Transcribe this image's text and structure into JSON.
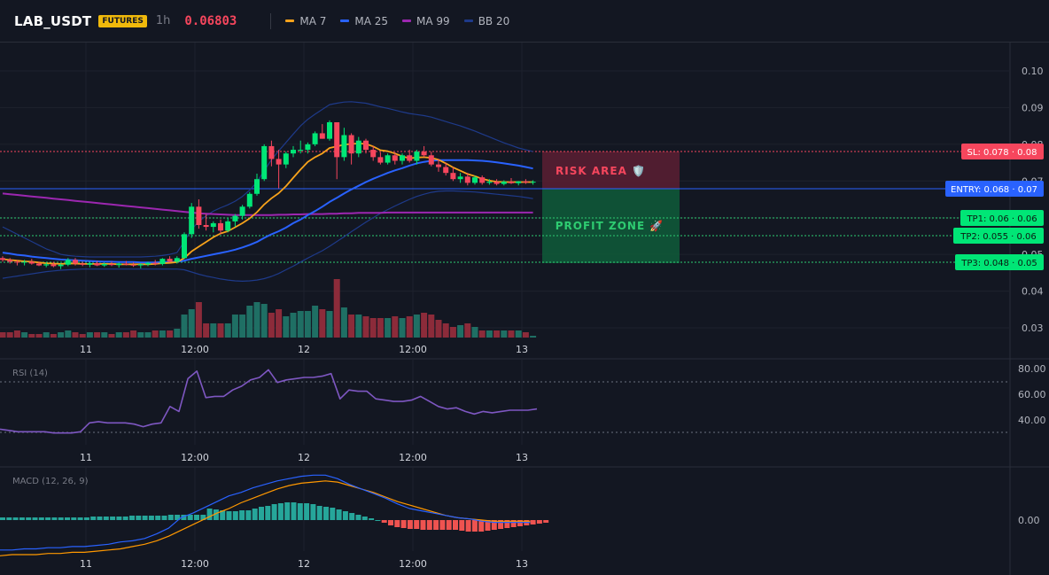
{
  "header": {
    "symbol": "LAB_USDT",
    "badge": "FUTURES",
    "interval": "1h",
    "price": "0.06803",
    "legend": [
      {
        "label": "MA 7",
        "color": "#f7a21b"
      },
      {
        "label": "MA 25",
        "color": "#2962ff"
      },
      {
        "label": "MA 99",
        "color": "#9c27b0"
      },
      {
        "label": "BB 20",
        "color": "#1e3a8a"
      }
    ]
  },
  "colors": {
    "up": "#26a69a",
    "upBright": "#00e676",
    "down": "#f6465d",
    "volUp": "#1f6f64",
    "volDown": "#8c2b3a",
    "rsi": "#7e57c2",
    "macd": "#2962ff",
    "signal": "#ff9800"
  },
  "price_axis": {
    "ticks": [
      "0.10",
      "0.09",
      "0.08",
      "0.07",
      "0.06",
      "0.05",
      "0.04",
      "0.03"
    ]
  },
  "time_axis": {
    "labels": [
      "11",
      "12:00",
      "12",
      "12:00",
      "13"
    ]
  },
  "zones": {
    "risk": "RISK AREA 🛡️",
    "profit": "PROFIT ZONE 🚀"
  },
  "levels": {
    "sl": "SL: 0.078 · 0.08",
    "entry": "ENTRY: 0.068 · 0.07",
    "tp1": "TP1: 0.06 · 0.06",
    "tp2": "TP2: 0.055 · 0.06",
    "tp3": "TP3: 0.048 · 0.05"
  },
  "rsi": {
    "title": "RSI (14)",
    "ticks": [
      "80.00",
      "60.00",
      "40.00"
    ]
  },
  "macd": {
    "title": "MACD (12, 26, 9)",
    "ticks": [
      "0.00"
    ]
  },
  "chart_data": {
    "type": "candlestick",
    "candles": [
      [
        0.049,
        0.0495,
        0.048,
        0.0485
      ],
      [
        0.0485,
        0.049,
        0.0475,
        0.048
      ],
      [
        0.048,
        0.0485,
        0.047,
        0.0478
      ],
      [
        0.0478,
        0.0485,
        0.047,
        0.048
      ],
      [
        0.048,
        0.0488,
        0.0472,
        0.0475
      ],
      [
        0.0475,
        0.048,
        0.0468,
        0.047
      ],
      [
        0.047,
        0.0478,
        0.0465,
        0.0473
      ],
      [
        0.0473,
        0.048,
        0.0465,
        0.0468
      ],
      [
        0.0468,
        0.0475,
        0.046,
        0.0472
      ],
      [
        0.0472,
        0.049,
        0.0468,
        0.0485
      ],
      [
        0.0485,
        0.049,
        0.047,
        0.0475
      ],
      [
        0.0475,
        0.048,
        0.0468,
        0.0472
      ],
      [
        0.0472,
        0.048,
        0.0465,
        0.0476
      ],
      [
        0.0476,
        0.0482,
        0.0468,
        0.047
      ],
      [
        0.047,
        0.0478,
        0.0466,
        0.0474
      ],
      [
        0.0474,
        0.048,
        0.0468,
        0.0471
      ],
      [
        0.0471,
        0.0478,
        0.0464,
        0.0475
      ],
      [
        0.0475,
        0.0482,
        0.047,
        0.0472
      ],
      [
        0.0472,
        0.0478,
        0.0466,
        0.047
      ],
      [
        0.047,
        0.0476,
        0.0462,
        0.0473
      ],
      [
        0.0473,
        0.048,
        0.0468,
        0.0477
      ],
      [
        0.0477,
        0.0485,
        0.047,
        0.0474
      ],
      [
        0.0474,
        0.049,
        0.047,
        0.0488
      ],
      [
        0.0488,
        0.0495,
        0.0478,
        0.048
      ],
      [
        0.048,
        0.0495,
        0.0475,
        0.049
      ],
      [
        0.049,
        0.056,
        0.0488,
        0.0555
      ],
      [
        0.0555,
        0.064,
        0.0545,
        0.063
      ],
      [
        0.063,
        0.065,
        0.057,
        0.058
      ],
      [
        0.058,
        0.061,
        0.0565,
        0.0575
      ],
      [
        0.0575,
        0.059,
        0.056,
        0.0585
      ],
      [
        0.0585,
        0.0595,
        0.0555,
        0.0565
      ],
      [
        0.0565,
        0.06,
        0.056,
        0.059
      ],
      [
        0.059,
        0.061,
        0.0575,
        0.0605
      ],
      [
        0.0605,
        0.0635,
        0.0595,
        0.063
      ],
      [
        0.063,
        0.067,
        0.0625,
        0.0665
      ],
      [
        0.0665,
        0.072,
        0.066,
        0.0705
      ],
      [
        0.0705,
        0.08,
        0.07,
        0.0795
      ],
      [
        0.0795,
        0.081,
        0.074,
        0.076
      ],
      [
        0.076,
        0.0785,
        0.068,
        0.0745
      ],
      [
        0.0745,
        0.078,
        0.0735,
        0.0775
      ],
      [
        0.0775,
        0.0795,
        0.0765,
        0.0785
      ],
      [
        0.0785,
        0.081,
        0.0775,
        0.0785
      ],
      [
        0.0785,
        0.0805,
        0.0775,
        0.08
      ],
      [
        0.08,
        0.0835,
        0.0795,
        0.083
      ],
      [
        0.083,
        0.0855,
        0.0815,
        0.0815
      ],
      [
        0.0815,
        0.0865,
        0.081,
        0.086
      ],
      [
        0.086,
        0.0855,
        0.0705,
        0.0765
      ],
      [
        0.0765,
        0.0845,
        0.0755,
        0.0825
      ],
      [
        0.0825,
        0.083,
        0.0745,
        0.0775
      ],
      [
        0.0775,
        0.082,
        0.0765,
        0.081
      ],
      [
        0.081,
        0.0815,
        0.0775,
        0.0785
      ],
      [
        0.0785,
        0.0795,
        0.0755,
        0.0765
      ],
      [
        0.0765,
        0.0778,
        0.0745,
        0.075
      ],
      [
        0.075,
        0.0775,
        0.0745,
        0.077
      ],
      [
        0.077,
        0.0778,
        0.0745,
        0.0755
      ],
      [
        0.0755,
        0.0775,
        0.0745,
        0.077
      ],
      [
        0.077,
        0.0785,
        0.075,
        0.0755
      ],
      [
        0.0755,
        0.0785,
        0.0745,
        0.078
      ],
      [
        0.078,
        0.0795,
        0.0765,
        0.077
      ],
      [
        0.077,
        0.078,
        0.074,
        0.0745
      ],
      [
        0.0745,
        0.076,
        0.0725,
        0.0738
      ],
      [
        0.0738,
        0.075,
        0.0715,
        0.0722
      ],
      [
        0.0722,
        0.0738,
        0.07,
        0.0705
      ],
      [
        0.0705,
        0.0722,
        0.0695,
        0.0712
      ],
      [
        0.0712,
        0.0722,
        0.0688,
        0.0695
      ],
      [
        0.0695,
        0.0715,
        0.069,
        0.071
      ],
      [
        0.071,
        0.0715,
        0.069,
        0.0695
      ],
      [
        0.0695,
        0.0705,
        0.069,
        0.0698
      ],
      [
        0.0698,
        0.0705,
        0.0688,
        0.0692
      ],
      [
        0.0692,
        0.0702,
        0.0688,
        0.0698
      ],
      [
        0.0698,
        0.0708,
        0.0692,
        0.0694
      ],
      [
        0.0694,
        0.07,
        0.0688,
        0.0699
      ],
      [
        0.0699,
        0.0705,
        0.0692,
        0.0696
      ],
      [
        0.0696,
        0.0702,
        0.069,
        0.0698
      ]
    ],
    "ma7": [
      0.0487,
      0.0485,
      0.0483,
      0.0481,
      0.048,
      0.0478,
      0.0476,
      0.0475,
      0.0474,
      0.0475,
      0.0475,
      0.0474,
      0.0474,
      0.0474,
      0.0474,
      0.0474,
      0.0473,
      0.0473,
      0.0473,
      0.0473,
      0.0473,
      0.0474,
      0.0476,
      0.0477,
      0.0479,
      0.049,
      0.0508,
      0.0521,
      0.0534,
      0.0547,
      0.0557,
      0.0563,
      0.0574,
      0.0585,
      0.0598,
      0.0615,
      0.0636,
      0.0653,
      0.0667,
      0.0686,
      0.0709,
      0.0731,
      0.0752,
      0.0765,
      0.0775,
      0.079,
      0.0794,
      0.0799,
      0.0801,
      0.0802,
      0.0801,
      0.0794,
      0.0784,
      0.0781,
      0.0775,
      0.0767,
      0.0762,
      0.0764,
      0.0765,
      0.0763,
      0.0758,
      0.0748,
      0.0737,
      0.0728,
      0.0719,
      0.0713,
      0.0706,
      0.0701,
      0.0698,
      0.0697,
      0.0697,
      0.0697,
      0.0697,
      0.0697
    ],
    "ma25": [
      0.0505,
      0.0502,
      0.0499,
      0.0497,
      0.0494,
      0.0492,
      0.049,
      0.0488,
      0.0486,
      0.0485,
      0.0484,
      0.0483,
      0.0482,
      0.0481,
      0.048,
      0.048,
      0.0479,
      0.0479,
      0.0479,
      0.0478,
      0.0478,
      0.0478,
      0.0479,
      0.0479,
      0.048,
      0.0483,
      0.0488,
      0.0492,
      0.0496,
      0.05,
      0.0504,
      0.0508,
      0.0513,
      0.0519,
      0.0526,
      0.0534,
      0.0545,
      0.0555,
      0.0563,
      0.0573,
      0.0585,
      0.0595,
      0.0607,
      0.0618,
      0.063,
      0.0643,
      0.0654,
      0.0666,
      0.0677,
      0.0687,
      0.0697,
      0.0706,
      0.0714,
      0.0722,
      0.0729,
      0.0735,
      0.0742,
      0.0748,
      0.0752,
      0.0755,
      0.0757,
      0.0757,
      0.0757,
      0.0757,
      0.0757,
      0.0756,
      0.0755,
      0.0753,
      0.0751,
      0.0748,
      0.0745,
      0.0742,
      0.0738,
      0.0734
    ],
    "ma99": [
      0.0666,
      0.0664,
      0.0662,
      0.066,
      0.0658,
      0.0656,
      0.0654,
      0.0652,
      0.065,
      0.0648,
      0.0646,
      0.0644,
      0.0642,
      0.064,
      0.0638,
      0.0636,
      0.0634,
      0.0632,
      0.063,
      0.0628,
      0.0626,
      0.0624,
      0.0622,
      0.062,
      0.0618,
      0.0616,
      0.0614,
      0.0612,
      0.0611,
      0.061,
      0.0609,
      0.0608,
      0.0607,
      0.0607,
      0.0607,
      0.0607,
      0.0607,
      0.0607,
      0.0608,
      0.0608,
      0.0609,
      0.0609,
      0.061,
      0.061,
      0.061,
      0.0611,
      0.0611,
      0.0612,
      0.0612,
      0.0613,
      0.0613,
      0.0613,
      0.0613,
      0.0614,
      0.0614,
      0.0614,
      0.0614,
      0.0614,
      0.0614,
      0.0614,
      0.0614,
      0.0614,
      0.0614,
      0.0614,
      0.0614,
      0.0614,
      0.0614,
      0.0614,
      0.0614,
      0.0614,
      0.0614,
      0.0614,
      0.0614,
      0.0614
    ],
    "bb_upper": [
      0.0575,
      0.0565,
      0.0555,
      0.0545,
      0.0535,
      0.0525,
      0.0515,
      0.0508,
      0.05,
      0.0497,
      0.0495,
      0.0494,
      0.0493,
      0.0493,
      0.0493,
      0.0493,
      0.0493,
      0.0493,
      0.0493,
      0.0493,
      0.0494,
      0.0495,
      0.0497,
      0.05,
      0.0505,
      0.0535,
      0.0568,
      0.059,
      0.0605,
      0.0618,
      0.0627,
      0.0635,
      0.0645,
      0.0658,
      0.0675,
      0.0697,
      0.0728,
      0.0758,
      0.0782,
      0.0805,
      0.0828,
      0.085,
      0.0868,
      0.0882,
      0.0895,
      0.0908,
      0.0912,
      0.0915,
      0.0916,
      0.0914,
      0.0912,
      0.0907,
      0.0902,
      0.0898,
      0.0893,
      0.0888,
      0.0884,
      0.0881,
      0.0878,
      0.0874,
      0.0868,
      0.0862,
      0.0856,
      0.085,
      0.0843,
      0.0836,
      0.0828,
      0.082,
      0.0812,
      0.0804,
      0.0797,
      0.079,
      0.0785,
      0.078
    ],
    "bb_lower": [
      0.0435,
      0.0438,
      0.0441,
      0.0444,
      0.0447,
      0.045,
      0.0453,
      0.0455,
      0.0457,
      0.0458,
      0.0459,
      0.046,
      0.046,
      0.046,
      0.046,
      0.046,
      0.046,
      0.046,
      0.046,
      0.046,
      0.046,
      0.046,
      0.046,
      0.046,
      0.046,
      0.0458,
      0.0452,
      0.0446,
      0.0441,
      0.0437,
      0.0433,
      0.043,
      0.0428,
      0.0427,
      0.0428,
      0.043,
      0.0434,
      0.044,
      0.0448,
      0.0458,
      0.0468,
      0.0479,
      0.049,
      0.05,
      0.051,
      0.0522,
      0.0535,
      0.0548,
      0.0562,
      0.0575,
      0.0588,
      0.06,
      0.0612,
      0.0622,
      0.0632,
      0.0641,
      0.065,
      0.0658,
      0.0664,
      0.0669,
      0.0672,
      0.0673,
      0.0673,
      0.0672,
      0.0671,
      0.067,
      0.0668,
      0.0666,
      0.0664,
      0.0662,
      0.066,
      0.0658,
      0.0655,
      0.0652
    ],
    "volume": [
      3,
      3,
      4,
      3,
      2,
      2,
      3,
      2,
      3,
      4,
      3,
      2,
      3,
      3,
      3,
      2,
      3,
      3,
      4,
      3,
      3,
      4,
      4,
      4,
      5,
      13,
      16,
      20,
      8,
      8,
      8,
      8,
      13,
      13,
      18,
      20,
      19,
      14,
      16,
      12,
      14,
      15,
      15,
      18,
      16,
      15,
      33,
      17,
      13,
      13,
      12,
      11,
      11,
      11,
      12,
      11,
      12,
      13,
      14,
      13,
      10,
      8,
      6,
      7,
      8,
      6,
      4,
      4,
      4,
      4,
      4,
      4,
      3,
      1
    ],
    "rsi_values": [
      32,
      31,
      30,
      30,
      30,
      30,
      29,
      29,
      29,
      30,
      37,
      38,
      37,
      37,
      37,
      36,
      34,
      36,
      37,
      50,
      46,
      72,
      78,
      57,
      58,
      58,
      63,
      66,
      71,
      73,
      79,
      69,
      71,
      72,
      73,
      73,
      74,
      76,
      56,
      63,
      62,
      62,
      56,
      55,
      54,
      54,
      55,
      58,
      54,
      50,
      48,
      49,
      46,
      44,
      46,
      45,
      46,
      47,
      47,
      47,
      48
    ],
    "macd_line": [
      -0.0026,
      -0.0026,
      -0.0025,
      -0.0025,
      -0.0024,
      -0.0024,
      -0.0023,
      -0.0023,
      -0.0022,
      -0.0021,
      -0.0019,
      -0.0018,
      -0.0016,
      -0.0012,
      -0.0007,
      0.0002,
      0.0006,
      0.0011,
      0.0016,
      0.0021,
      0.0024,
      0.0028,
      0.0031,
      0.0034,
      0.0036,
      0.0038,
      0.0039,
      0.0039,
      0.0036,
      0.0031,
      0.0027,
      0.0023,
      0.0019,
      0.0014,
      0.001,
      0.0008,
      0.0006,
      0.0004,
      0.0002,
      0.0001,
      -0.0001,
      -0.0002,
      -0.0002,
      -0.0002,
      -0.0002
    ],
    "macd_signal": [
      -0.0031,
      -0.003,
      -0.003,
      -0.003,
      -0.0029,
      -0.0029,
      -0.0028,
      -0.0028,
      -0.0027,
      -0.0026,
      -0.0025,
      -0.0023,
      -0.0021,
      -0.0018,
      -0.0014,
      -0.0009,
      -0.0004,
      0.0001,
      0.0006,
      0.001,
      0.0015,
      0.0019,
      0.0023,
      0.0027,
      0.003,
      0.0032,
      0.0033,
      0.0034,
      0.0033,
      0.003,
      0.0027,
      0.0024,
      0.002,
      0.0016,
      0.0013,
      0.001,
      0.0007,
      0.0004,
      0.0002,
      0.0001,
      0,
      -0.0001,
      -0.0001,
      -0.0001,
      -0.0001
    ],
    "macd_hist": [
      0.3,
      0.3,
      0.3,
      0.3,
      0.3,
      0.3,
      0.3,
      0.3,
      0.3,
      0.3,
      0.3,
      0.3,
      0.3,
      0.3,
      0.4,
      0.4,
      0.4,
      0.4,
      0.4,
      0.4,
      0.5,
      0.5,
      0.5,
      0.5,
      0.5,
      0.5,
      0.6,
      0.6,
      0.6,
      0.6,
      0.6,
      0.6,
      1.3,
      1.2,
      1.1,
      1.0,
      1.0,
      1.1,
      1.1,
      1.3,
      1.5,
      1.6,
      1.8,
      1.9,
      2.0,
      2.0,
      1.9,
      1.9,
      1.8,
      1.6,
      1.5,
      1.4,
      1.2,
      1.0,
      0.8,
      0.6,
      0.4,
      0.2,
      0,
      -0.3,
      -0.6,
      -0.8,
      -0.9,
      -1.0,
      -1.0,
      -1.1,
      -1.1,
      -1.1,
      -1.1,
      -1.1,
      -1.1,
      -1.2,
      -1.3,
      -1.3,
      -1.3,
      -1.2,
      -1.1,
      -1.0,
      -0.9,
      -0.8,
      -0.7,
      -0.6,
      -0.5,
      -0.4,
      -0.3
    ],
    "ylim": [
      0.028,
      0.102
    ]
  }
}
